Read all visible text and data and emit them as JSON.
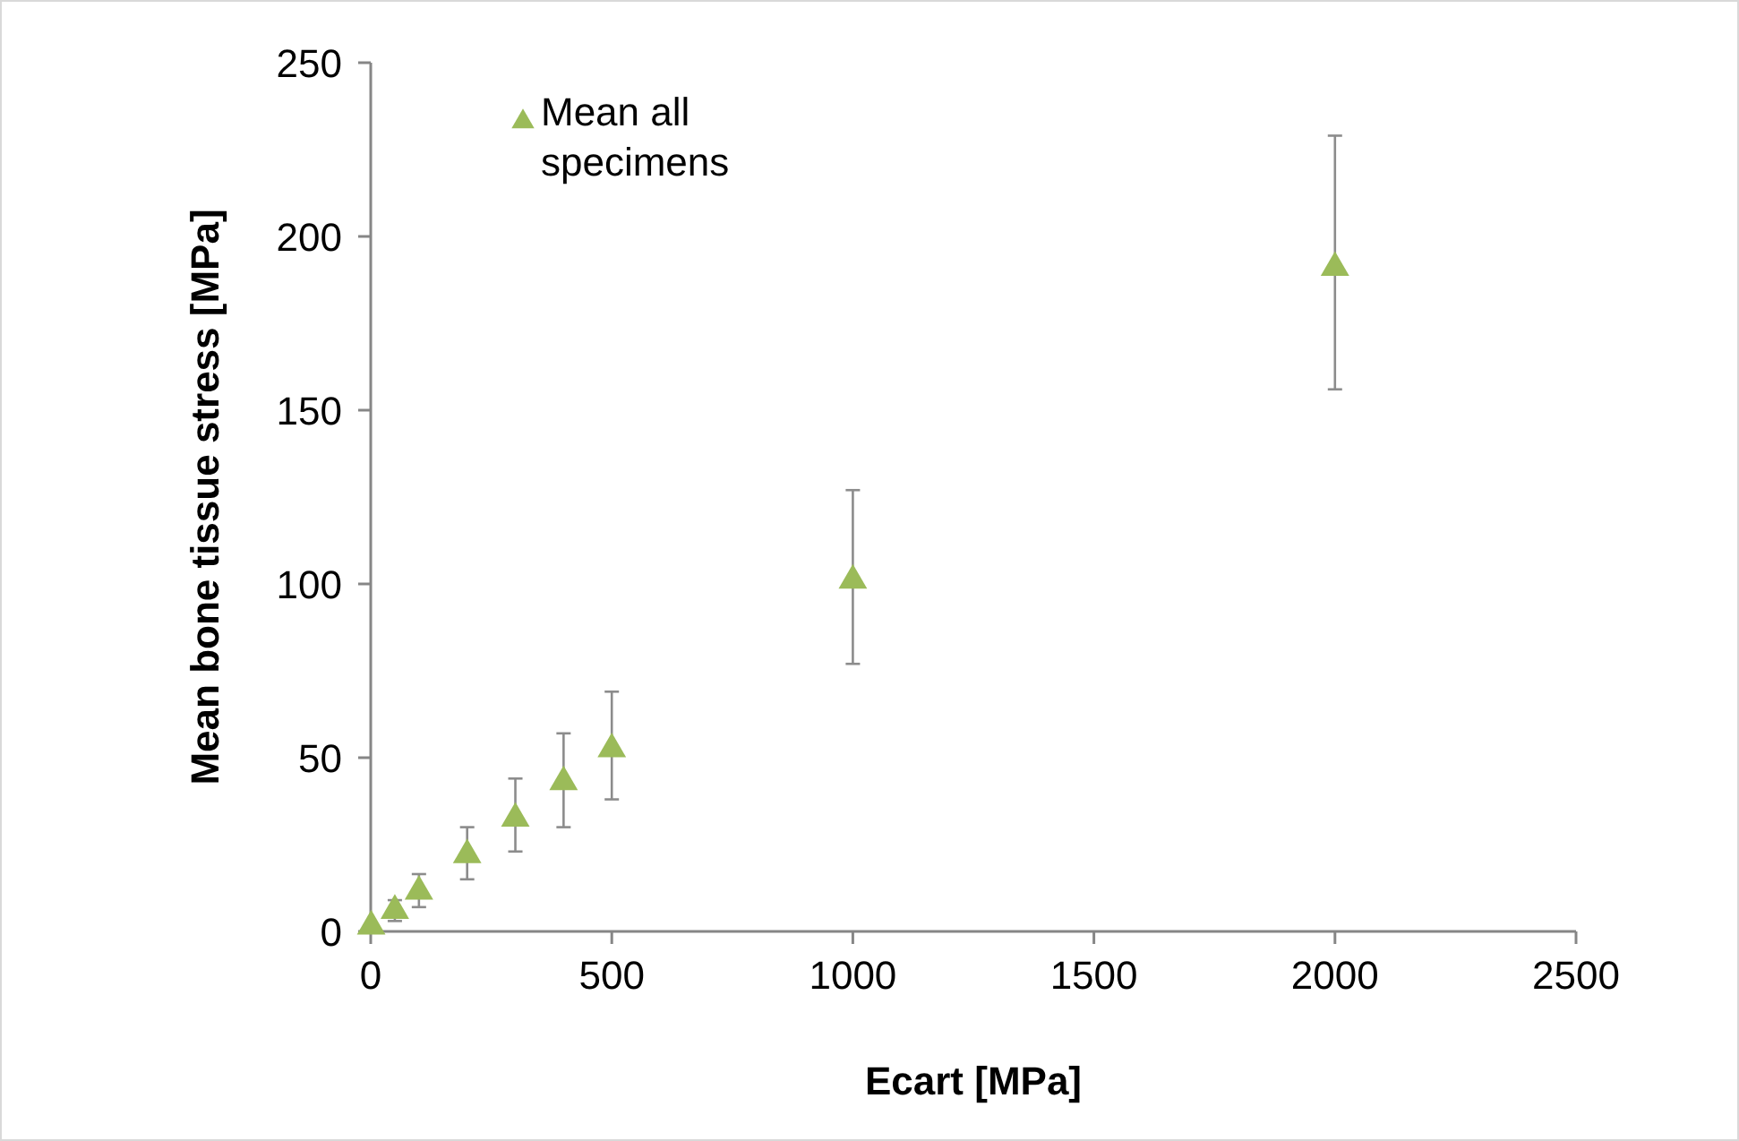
{
  "chart_data": {
    "type": "scatter",
    "xlabel": "Ecart [MPa]",
    "ylabel": "Mean bone tissue stress [MPa]",
    "xlim": [
      0,
      2500
    ],
    "xticks": [
      0,
      500,
      1000,
      1500,
      2000,
      2500
    ],
    "ylim": [
      0,
      250
    ],
    "yticks": [
      0,
      50,
      100,
      150,
      200,
      250
    ],
    "legend": "top left",
    "marker": "triangle",
    "grid": false,
    "series": [
      {
        "name": "Mean all specimens",
        "color": "#9bbb59",
        "x": [
          1,
          50,
          100,
          200,
          300,
          400,
          500,
          1000,
          2000
        ],
        "values": [
          1.5,
          6,
          11.5,
          22,
          32.5,
          43,
          52.5,
          101,
          191
        ],
        "errors": [
          null,
          [
            3,
            9
          ],
          [
            7,
            16.5
          ],
          [
            15,
            30
          ],
          [
            23,
            44
          ],
          [
            30,
            57
          ],
          [
            38,
            69
          ],
          [
            77,
            127
          ],
          [
            156,
            229
          ]
        ]
      }
    ]
  }
}
